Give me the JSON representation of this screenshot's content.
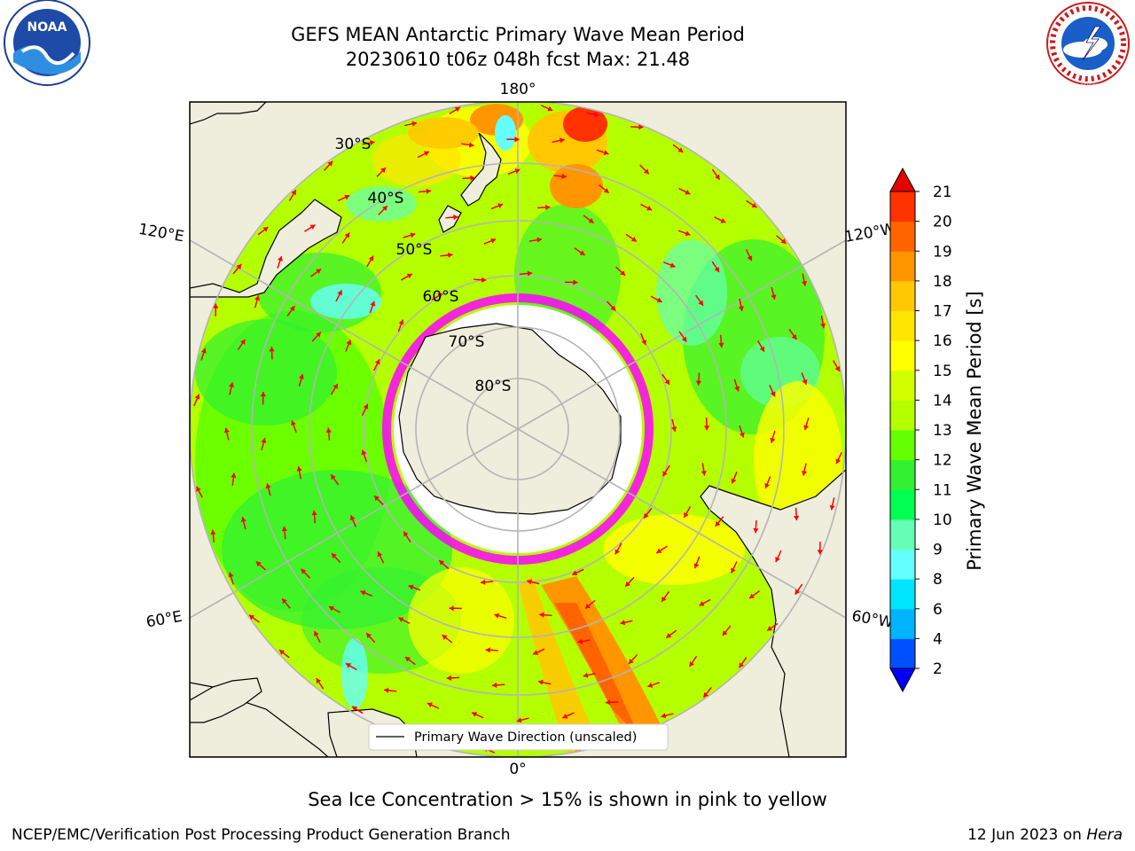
{
  "title_line1": "GEFS MEAN Antarctic Primary Wave Mean Period",
  "title_line2": "20230610 t06z 048h fcst   Max: 21.48",
  "caption": "Sea Ice Concentration > 15% is shown in pink to yellow",
  "footer_left": "NCEP/EMC/Verification Post Processing Product Generation Branch",
  "footer_date": "12 Jun 2023 on ",
  "footer_host": "Hera",
  "legend_label": "Primary Wave Direction (unscaled)",
  "colorbar": {
    "label": "Primary Wave Mean Period [s]",
    "ticks": [
      "2",
      "4",
      "6",
      "8",
      "9",
      "10",
      "11",
      "12",
      "13",
      "14",
      "15",
      "16",
      "17",
      "18",
      "19",
      "20",
      "21"
    ],
    "colors": [
      "#0050ff",
      "#00b4ff",
      "#00e6ff",
      "#64ffff",
      "#64ffb4",
      "#00ff50",
      "#32f032",
      "#64ff00",
      "#b4ff00",
      "#d2ff00",
      "#ffff00",
      "#ffe600",
      "#ffc800",
      "#ff9600",
      "#ff6400",
      "#ff3200"
    ],
    "under_color": "#0000ff",
    "over_color": "#e60000"
  },
  "map": {
    "longitude_labels": [
      "180°",
      "120°E",
      "120°W",
      "60°E",
      "60°W",
      "0°"
    ],
    "latitude_labels": [
      "30°S",
      "40°S",
      "50°S",
      "60°S",
      "70°S",
      "80°S"
    ],
    "land_color": "#efeddb",
    "ocean_base_color": "#b4ff00",
    "ice_edge_color": "#ff00ff",
    "arrow_color": "#ff0000"
  },
  "logos": {
    "noaa": "NOAA",
    "nws": "NATIONAL WEATHER SERVICE"
  }
}
